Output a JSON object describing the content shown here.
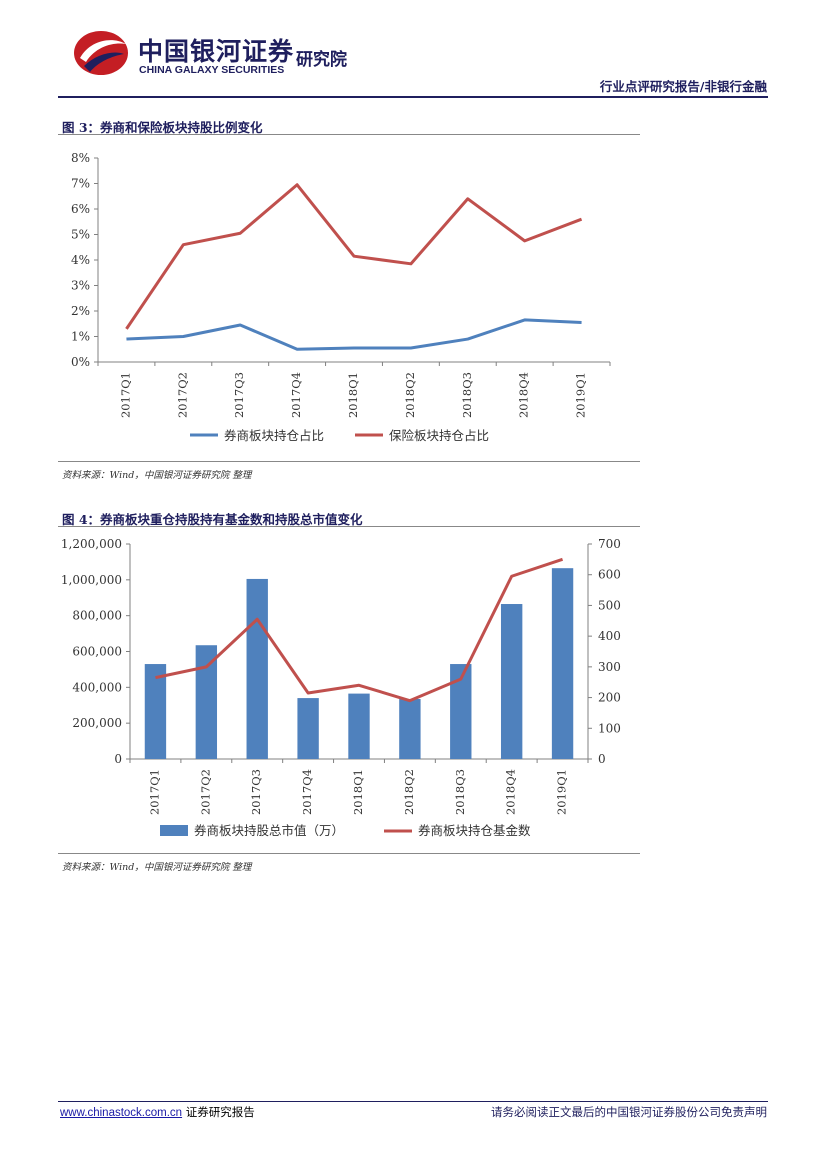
{
  "header": {
    "logo_cn": "中国银河证券",
    "logo_en": "CHINA GALAXY SECURITIES",
    "logo_inst": "研究院",
    "report_type": "行业点评研究报告/非银行金融"
  },
  "figure3": {
    "title": "图 3：券商和保险板块持股比例变化",
    "source": "资料来源：Wind，中国银河证券研究院 整理"
  },
  "figure4": {
    "title": "图 4：券商板块重仓持股持有基金数和持股总市值变化",
    "source": "资料来源：Wind，中国银河证券研究院 整理"
  },
  "chart_data": [
    {
      "type": "line",
      "categories": [
        "2017Q1",
        "2017Q2",
        "2017Q3",
        "2017Q4",
        "2018Q1",
        "2018Q2",
        "2018Q3",
        "2018Q4",
        "2019Q1"
      ],
      "series": [
        {
          "name": "券商板块持仓占比",
          "color": "#4f81bd",
          "values": [
            0.9,
            1.0,
            1.45,
            0.5,
            0.55,
            0.55,
            0.9,
            1.65,
            1.55
          ]
        },
        {
          "name": "保险板块持仓占比",
          "color": "#c0504d",
          "values": [
            1.3,
            4.6,
            5.05,
            6.95,
            4.15,
            3.85,
            6.4,
            4.75,
            5.6
          ]
        }
      ],
      "ylim": [
        0,
        8
      ],
      "yticks": [
        "0%",
        "1%",
        "2%",
        "3%",
        "4%",
        "5%",
        "6%",
        "7%",
        "8%"
      ],
      "legend_position": "bottom"
    },
    {
      "type": "bar",
      "categories": [
        "2017Q1",
        "2017Q2",
        "2017Q3",
        "2017Q4",
        "2018Q1",
        "2018Q2",
        "2018Q3",
        "2018Q4",
        "2019Q1"
      ],
      "series": [
        {
          "name": "券商板块持股总市值（万）",
          "type": "bar",
          "axis": "left",
          "color": "#4f81bd",
          "values": [
            530000,
            635000,
            1005000,
            340000,
            365000,
            335000,
            530000,
            865000,
            1065000
          ]
        },
        {
          "name": "券商板块持仓基金数",
          "type": "line",
          "axis": "right",
          "color": "#c0504d",
          "values": [
            265,
            300,
            455,
            215,
            240,
            190,
            260,
            595,
            650
          ]
        }
      ],
      "ylim_left": [
        0,
        1200000
      ],
      "ylim_right": [
        0,
        700
      ],
      "yticks_left": [
        "0",
        "200,000",
        "400,000",
        "600,000",
        "800,000",
        "1,000,000",
        "1,200,000"
      ],
      "yticks_right": [
        "0",
        "100",
        "200",
        "300",
        "400",
        "500",
        "600",
        "700"
      ],
      "legend_position": "bottom"
    }
  ],
  "footer": {
    "url": "www.chinastock.com.cn",
    "left_suffix": " 证券研究报告",
    "right": "请务必阅读正文最后的中国银河证券股份公司免责声明"
  }
}
